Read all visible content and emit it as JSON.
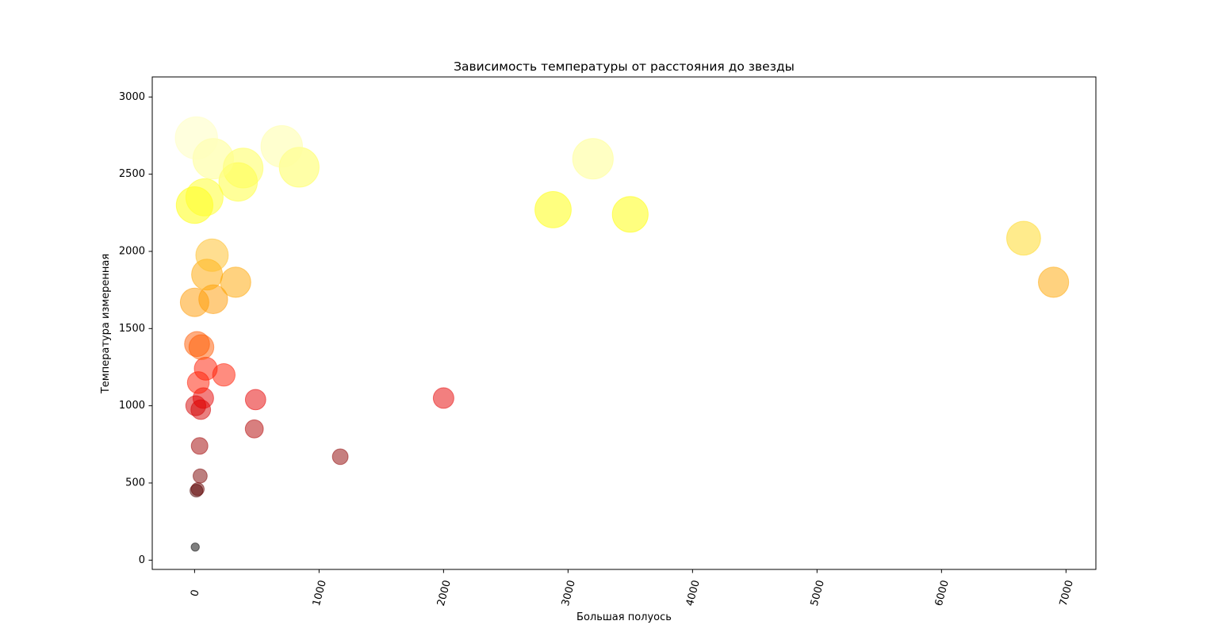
{
  "chart_data": {
    "type": "scatter",
    "title": "Зависимость температуры от расстояния до звезды",
    "xlabel": "Большая полуось",
    "ylabel": "Температура измеренная",
    "xlim": [
      -340,
      7240
    ],
    "ylim": [
      -60,
      3130
    ],
    "xticks": [
      0,
      1000,
      2000,
      3000,
      4000,
      5000,
      6000,
      7000
    ],
    "yticks": [
      0,
      500,
      1000,
      1500,
      2000,
      2500,
      3000
    ],
    "xtick_rotation": -75,
    "grid": false,
    "legend": "none",
    "points": [
      {
        "x": 5,
        "y": 85,
        "color": "#000000"
      },
      {
        "x": 15,
        "y": 450,
        "color": "#4a0000"
      },
      {
        "x": 25,
        "y": 460,
        "color": "#660000"
      },
      {
        "x": 45,
        "y": 545,
        "color": "#7a0000"
      },
      {
        "x": 40,
        "y": 740,
        "color": "#a00000"
      },
      {
        "x": 1170,
        "y": 670,
        "color": "#8e0000"
      },
      {
        "x": 480,
        "y": 850,
        "color": "#b20000"
      },
      {
        "x": 50,
        "y": 975,
        "color": "#d40000"
      },
      {
        "x": 10,
        "y": 1000,
        "color": "#d40000"
      },
      {
        "x": 70,
        "y": 1050,
        "color": "#e60000"
      },
      {
        "x": 490,
        "y": 1040,
        "color": "#e60000"
      },
      {
        "x": 2000,
        "y": 1050,
        "color": "#e60000"
      },
      {
        "x": 30,
        "y": 1150,
        "color": "#ff1a00"
      },
      {
        "x": 90,
        "y": 1240,
        "color": "#ff1a00"
      },
      {
        "x": 235,
        "y": 1200,
        "color": "#ff1a00"
      },
      {
        "x": 20,
        "y": 1400,
        "color": "#ff5a00"
      },
      {
        "x": 55,
        "y": 1380,
        "color": "#ff5a00"
      },
      {
        "x": 0,
        "y": 1670,
        "color": "#ff9a00"
      },
      {
        "x": 150,
        "y": 1690,
        "color": "#ff9a00"
      },
      {
        "x": 100,
        "y": 1850,
        "color": "#ffa500"
      },
      {
        "x": 330,
        "y": 1800,
        "color": "#ffa500"
      },
      {
        "x": 6900,
        "y": 1800,
        "color": "#ffa500"
      },
      {
        "x": 140,
        "y": 1975,
        "color": "#ffbe22"
      },
      {
        "x": 6660,
        "y": 2085,
        "color": "#ffd81a"
      },
      {
        "x": 0,
        "y": 2300,
        "color": "#ffff00"
      },
      {
        "x": 80,
        "y": 2350,
        "color": "#ffff22"
      },
      {
        "x": 2880,
        "y": 2270,
        "color": "#ffff00"
      },
      {
        "x": 3500,
        "y": 2240,
        "color": "#ffff00"
      },
      {
        "x": 350,
        "y": 2450,
        "color": "#ffff33"
      },
      {
        "x": 390,
        "y": 2540,
        "color": "#ffff50"
      },
      {
        "x": 840,
        "y": 2545,
        "color": "#ffff50"
      },
      {
        "x": 150,
        "y": 2600,
        "color": "#ffff88"
      },
      {
        "x": 3200,
        "y": 2600,
        "color": "#ffff88"
      },
      {
        "x": 700,
        "y": 2680,
        "color": "#ffffa0"
      },
      {
        "x": 15,
        "y": 2735,
        "color": "#ffffbb"
      }
    ]
  }
}
